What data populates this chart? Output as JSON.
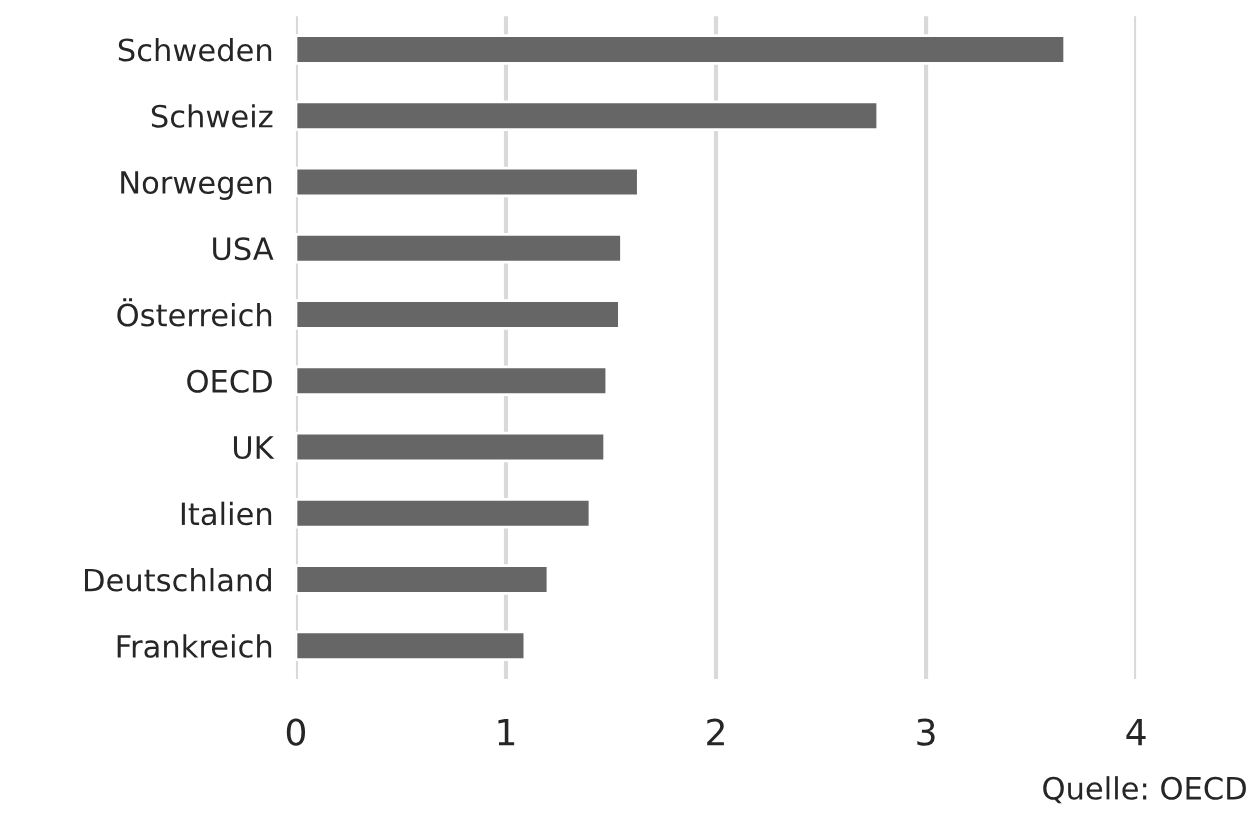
{
  "chart_data": {
    "type": "bar",
    "orientation": "horizontal",
    "categories": [
      "Schweden",
      "Schweiz",
      "Norwegen",
      "USA",
      "Österreich",
      "OECD",
      "UK",
      "Italien",
      "Deutschland",
      "Frankreich"
    ],
    "values": [
      3.66,
      2.77,
      1.63,
      1.55,
      1.54,
      1.48,
      1.47,
      1.4,
      1.2,
      1.09
    ],
    "color": "#666666",
    "xlim": [
      0,
      4
    ],
    "xticks": [
      0,
      1,
      2,
      3,
      4
    ],
    "grid": "x",
    "annotations": [
      "Quelle: OECD"
    ]
  }
}
